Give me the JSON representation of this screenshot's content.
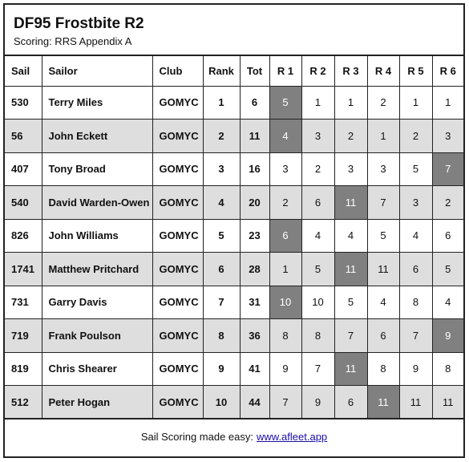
{
  "header": {
    "title": "DF95 Frostbite R2",
    "subtitle": "Scoring: RRS Appendix A"
  },
  "columns": [
    "Sail",
    "Sailor",
    "Club",
    "Rank",
    "Tot",
    "R 1",
    "R 2",
    "R 3",
    "R 4",
    "R 5",
    "R 6"
  ],
  "rows": [
    {
      "sail": "530",
      "sailor": "Terry Miles",
      "club": "GOMYC",
      "rank": "1",
      "tot": "6",
      "races": [
        "5",
        "1",
        "1",
        "2",
        "1",
        "1"
      ],
      "discard": [
        0
      ]
    },
    {
      "sail": "56",
      "sailor": "John Eckett",
      "club": "GOMYC",
      "rank": "2",
      "tot": "11",
      "races": [
        "4",
        "3",
        "2",
        "1",
        "2",
        "3"
      ],
      "discard": [
        0
      ]
    },
    {
      "sail": "407",
      "sailor": "Tony Broad",
      "club": "GOMYC",
      "rank": "3",
      "tot": "16",
      "races": [
        "3",
        "2",
        "3",
        "3",
        "5",
        "7"
      ],
      "discard": [
        5
      ]
    },
    {
      "sail": "540",
      "sailor": "David Warden-Owen",
      "club": "GOMYC",
      "rank": "4",
      "tot": "20",
      "races": [
        "2",
        "6",
        "11",
        "7",
        "3",
        "2"
      ],
      "discard": [
        2
      ]
    },
    {
      "sail": "826",
      "sailor": "John Williams",
      "club": "GOMYC",
      "rank": "5",
      "tot": "23",
      "races": [
        "6",
        "4",
        "4",
        "5",
        "4",
        "6"
      ],
      "discard": [
        0
      ]
    },
    {
      "sail": "1741",
      "sailor": "Matthew Pritchard",
      "club": "GOMYC",
      "rank": "6",
      "tot": "28",
      "races": [
        "1",
        "5",
        "11",
        "11",
        "6",
        "5"
      ],
      "discard": [
        2
      ]
    },
    {
      "sail": "731",
      "sailor": "Garry Davis",
      "club": "GOMYC",
      "rank": "7",
      "tot": "31",
      "races": [
        "10",
        "10",
        "5",
        "4",
        "8",
        "4"
      ],
      "discard": [
        0
      ]
    },
    {
      "sail": "719",
      "sailor": "Frank Poulson",
      "club": "GOMYC",
      "rank": "8",
      "tot": "36",
      "races": [
        "8",
        "8",
        "7",
        "6",
        "7",
        "9"
      ],
      "discard": [
        5
      ]
    },
    {
      "sail": "819",
      "sailor": "Chris Shearer",
      "club": "GOMYC",
      "rank": "9",
      "tot": "41",
      "races": [
        "9",
        "7",
        "11",
        "8",
        "9",
        "8"
      ],
      "discard": [
        2
      ]
    },
    {
      "sail": "512",
      "sailor": "Peter Hogan",
      "club": "GOMYC",
      "rank": "10",
      "tot": "44",
      "races": [
        "7",
        "9",
        "6",
        "11",
        "11",
        "11"
      ],
      "discard": [
        3
      ]
    }
  ],
  "footer": {
    "text": "Sail Scoring made easy:",
    "link": "www.afleet.app"
  },
  "colors": {
    "discard_bg": "#808080",
    "alt_row_bg": "#dedede",
    "link": "#1a0dab"
  }
}
